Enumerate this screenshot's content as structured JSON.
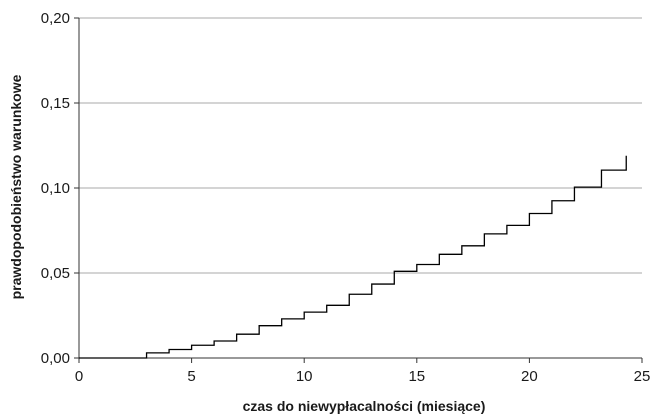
{
  "chart_data": {
    "type": "line",
    "line_style": "step",
    "xlabel": "czas do niewypłacalności (miesiące)",
    "ylabel": "prawdopodobieństwo warunkowe",
    "xlim": [
      0,
      25
    ],
    "ylim": [
      0,
      0.2
    ],
    "x_ticks": [
      {
        "value": 0,
        "label": "0"
      },
      {
        "value": 5,
        "label": "5"
      },
      {
        "value": 10,
        "label": "10"
      },
      {
        "value": 15,
        "label": "15"
      },
      {
        "value": 20,
        "label": "20"
      },
      {
        "value": 25,
        "label": "25"
      }
    ],
    "y_ticks": [
      {
        "value": 0,
        "label": "0,00"
      },
      {
        "value": 0.05,
        "label": "0,05"
      },
      {
        "value": 0.1,
        "label": "0,10"
      },
      {
        "value": 0.15,
        "label": "0,15"
      },
      {
        "value": 0.2,
        "label": "0,20"
      }
    ],
    "grid": {
      "horizontal": true,
      "vertical": false
    },
    "series": [
      {
        "color": "#000000",
        "points": [
          {
            "x": 0,
            "y": 0.0
          },
          {
            "x": 3,
            "y": 0.003
          },
          {
            "x": 4,
            "y": 0.005
          },
          {
            "x": 5,
            "y": 0.0075
          },
          {
            "x": 6,
            "y": 0.01
          },
          {
            "x": 7,
            "y": 0.014
          },
          {
            "x": 8,
            "y": 0.019
          },
          {
            "x": 9,
            "y": 0.023
          },
          {
            "x": 10,
            "y": 0.027
          },
          {
            "x": 11,
            "y": 0.031
          },
          {
            "x": 12,
            "y": 0.0375
          },
          {
            "x": 13,
            "y": 0.0435
          },
          {
            "x": 14,
            "y": 0.051
          },
          {
            "x": 15,
            "y": 0.055
          },
          {
            "x": 16,
            "y": 0.061
          },
          {
            "x": 17,
            "y": 0.066
          },
          {
            "x": 18,
            "y": 0.073
          },
          {
            "x": 19,
            "y": 0.078
          },
          {
            "x": 20,
            "y": 0.085
          },
          {
            "x": 21,
            "y": 0.0925
          },
          {
            "x": 22,
            "y": 0.1005
          },
          {
            "x": 23.2,
            "y": 0.1105
          },
          {
            "x": 24.3,
            "y": 0.119
          }
        ]
      }
    ]
  }
}
